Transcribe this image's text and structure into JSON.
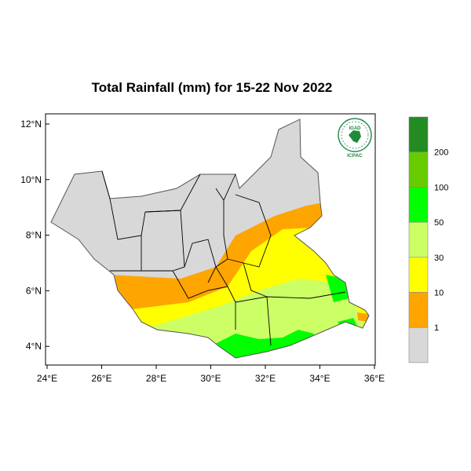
{
  "title": "Total Rainfall (mm) for 15-22 Nov 2022",
  "lat_ticks": [
    "12°N",
    "10°N",
    "8°N",
    "6°N",
    "4°N"
  ],
  "lon_ticks": [
    "24°E",
    "26°E",
    "28°E",
    "30°E",
    "32°E",
    "34°E",
    "36°E"
  ],
  "legend": {
    "labels": [
      "200",
      "100",
      "50",
      "30",
      "10",
      "1"
    ],
    "colors": [
      "#228b22",
      "#66cc00",
      "#00ff00",
      "#ccff66",
      "#ffff00",
      "#ffa500",
      "#d8d8d8"
    ]
  },
  "logo": {
    "top_text": "IGAD",
    "bottom_text": "ICPAC"
  }
}
